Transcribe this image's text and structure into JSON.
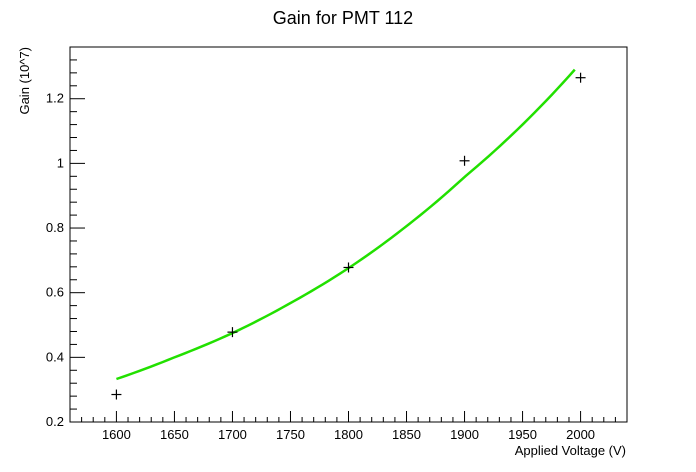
{
  "chart_data": {
    "type": "scatter",
    "title": "Gain for PMT 112",
    "xlabel": "Applied Voltage (V)",
    "ylabel": "Gain (10^7)",
    "xlim": [
      1560,
      2040
    ],
    "ylim": [
      0.2,
      1.36
    ],
    "x_ticks": [
      1600,
      1650,
      1700,
      1750,
      1800,
      1850,
      1900,
      1950,
      2000
    ],
    "x_tick_labels": [
      "1600",
      "1650",
      "1700",
      "1750",
      "1800",
      "1850",
      "1900",
      "1950",
      "2000"
    ],
    "y_ticks": [
      0.2,
      0.4,
      0.6,
      0.8,
      1.0,
      1.2
    ],
    "y_tick_labels": [
      "0.2",
      "0.4",
      "0.6",
      "0.8",
      "1",
      "1.2"
    ],
    "grid": false,
    "series": [
      {
        "values": [
          {
            "x": 1600,
            "y": 0.285
          },
          {
            "x": 1700,
            "y": 0.478
          },
          {
            "x": 1800,
            "y": 0.678
          },
          {
            "x": 1900,
            "y": 1.008
          },
          {
            "x": 2000,
            "y": 1.265
          }
        ],
        "marker": "plus",
        "color": "#000000"
      },
      {
        "fit_range": [
          1600,
          1995
        ],
        "fit_curve": [
          {
            "x": 1600,
            "y": 0.333
          },
          {
            "x": 1650,
            "y": 0.4
          },
          {
            "x": 1700,
            "y": 0.475
          },
          {
            "x": 1750,
            "y": 0.568
          },
          {
            "x": 1800,
            "y": 0.676
          },
          {
            "x": 1850,
            "y": 0.806
          },
          {
            "x": 1900,
            "y": 0.958
          },
          {
            "x": 1950,
            "y": 1.12
          },
          {
            "x": 1995,
            "y": 1.29
          }
        ],
        "color": "#22e000"
      }
    ]
  }
}
